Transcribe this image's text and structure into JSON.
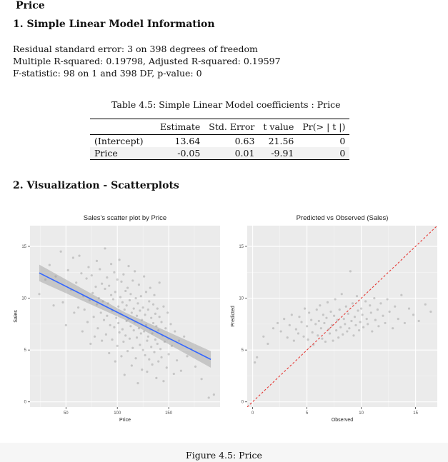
{
  "header": {
    "title": "Price"
  },
  "section1": {
    "heading": "1. Simple Linear Model Information",
    "summary": [
      "Residual standard error: 3 on 398 degrees of freedom",
      "Multiple R-squared: 0.19798, Adjusted R-squared: 0.19597",
      "F-statistic: 98 on 1 and 398 DF, p-value: 0"
    ]
  },
  "table": {
    "caption": "Table 4.5: Simple Linear Model coefficients : Price",
    "columns": [
      "",
      "Estimate",
      "Std. Error",
      "t value",
      "Pr(> | t |)"
    ],
    "rows": [
      [
        "(Intercept)",
        "13.64",
        "0.63",
        "21.56",
        "0"
      ],
      [
        "Price",
        "-0.05",
        "0.01",
        "-9.91",
        "0"
      ]
    ]
  },
  "section2": {
    "heading": "2. Visualization - Scatterplots"
  },
  "figure": {
    "caption": "Figure 4.5: Price"
  },
  "chart_data": [
    {
      "type": "scatter",
      "title": "Sales's scatter plot by Price",
      "xlabel": "Price",
      "ylabel": "Sales",
      "xlim": [
        15,
        200
      ],
      "ylim": [
        -0.5,
        17
      ],
      "xticks": [
        50,
        100,
        150
      ],
      "yticks": [
        0,
        5,
        10,
        15
      ],
      "grid": true,
      "points_color": "#7f7f7f",
      "line_color": "#3366ff",
      "band_color": "#999999",
      "fit": {
        "intercept": 13.64,
        "slope": -0.05,
        "x_range": [
          24,
          191
        ],
        "se_band": 0.8
      },
      "points": [
        [
          24,
          10.4
        ],
        [
          30,
          11.8
        ],
        [
          34,
          13.2
        ],
        [
          38,
          9.3
        ],
        [
          40,
          12.1
        ],
        [
          45,
          14.5
        ],
        [
          47,
          9.6
        ],
        [
          50,
          7.4
        ],
        [
          52,
          12.7
        ],
        [
          55,
          10.8
        ],
        [
          57,
          13.9
        ],
        [
          58,
          8.6
        ],
        [
          60,
          11.5
        ],
        [
          62,
          9.1
        ],
        [
          63,
          14.1
        ],
        [
          65,
          12.4
        ],
        [
          66,
          6.8
        ],
        [
          67,
          10.2
        ],
        [
          68,
          8.9
        ],
        [
          70,
          11.9
        ],
        [
          71,
          7.7
        ],
        [
          72,
          13.0
        ],
        [
          73,
          9.8
        ],
        [
          74,
          5.6
        ],
        [
          75,
          12.2
        ],
        [
          76,
          10.5
        ],
        [
          77,
          8.2
        ],
        [
          78,
          6.3
        ],
        [
          79,
          11.1
        ],
        [
          80,
          9.4
        ],
        [
          80,
          13.6
        ],
        [
          81,
          7.1
        ],
        [
          82,
          10.0
        ],
        [
          83,
          12.8
        ],
        [
          84,
          8.6
        ],
        [
          85,
          5.9
        ],
        [
          85,
          11.4
        ],
        [
          86,
          9.7
        ],
        [
          87,
          7.9
        ],
        [
          88,
          10.9
        ],
        [
          88,
          14.8
        ],
        [
          89,
          6.5
        ],
        [
          90,
          12.0
        ],
        [
          90,
          8.3
        ],
        [
          91,
          9.5
        ],
        [
          92,
          4.7
        ],
        [
          92,
          11.2
        ],
        [
          93,
          7.4
        ],
        [
          94,
          10.3
        ],
        [
          94,
          13.3
        ],
        [
          95,
          8.8
        ],
        [
          95,
          6.0
        ],
        [
          96,
          9.9
        ],
        [
          97,
          12.5
        ],
        [
          97,
          7.2
        ],
        [
          98,
          3.9
        ],
        [
          98,
          10.6
        ],
        [
          99,
          8.1
        ],
        [
          100,
          11.8
        ],
        [
          100,
          5.4
        ],
        [
          101,
          9.2
        ],
        [
          101,
          7.6
        ],
        [
          102,
          13.7
        ],
        [
          102,
          6.7
        ],
        [
          103,
          10.1
        ],
        [
          103,
          8.5
        ],
        [
          104,
          4.4
        ],
        [
          104,
          11.6
        ],
        [
          105,
          7.0
        ],
        [
          105,
          9.6
        ],
        [
          106,
          12.3
        ],
        [
          106,
          5.8
        ],
        [
          107,
          8.9
        ],
        [
          107,
          2.6
        ],
        [
          108,
          10.7
        ],
        [
          108,
          6.4
        ],
        [
          109,
          7.8
        ],
        [
          109,
          9.3
        ],
        [
          110,
          11.0
        ],
        [
          110,
          4.9
        ],
        [
          111,
          8.0
        ],
        [
          111,
          13.1
        ],
        [
          112,
          6.1
        ],
        [
          112,
          9.8
        ],
        [
          113,
          7.3
        ],
        [
          113,
          10.4
        ],
        [
          114,
          3.5
        ],
        [
          114,
          8.6
        ],
        [
          115,
          11.7
        ],
        [
          115,
          5.2
        ],
        [
          116,
          9.0
        ],
        [
          116,
          6.9
        ],
        [
          117,
          7.7
        ],
        [
          117,
          12.6
        ],
        [
          118,
          4.2
        ],
        [
          118,
          10.0
        ],
        [
          119,
          8.3
        ],
        [
          119,
          6.2
        ],
        [
          120,
          9.5
        ],
        [
          120,
          1.8
        ],
        [
          121,
          7.1
        ],
        [
          121,
          11.3
        ],
        [
          122,
          5.5
        ],
        [
          122,
          8.8
        ],
        [
          123,
          6.6
        ],
        [
          123,
          10.2
        ],
        [
          124,
          3.1
        ],
        [
          124,
          7.9
        ],
        [
          125,
          9.1
        ],
        [
          125,
          5.0
        ],
        [
          126,
          12.1
        ],
        [
          126,
          6.8
        ],
        [
          127,
          8.4
        ],
        [
          127,
          4.5
        ],
        [
          128,
          7.4
        ],
        [
          128,
          10.6
        ],
        [
          129,
          5.9
        ],
        [
          129,
          2.9
        ],
        [
          130,
          8.9
        ],
        [
          130,
          6.3
        ],
        [
          131,
          9.7
        ],
        [
          131,
          4.1
        ],
        [
          132,
          7.0
        ],
        [
          132,
          11.0
        ],
        [
          133,
          5.3
        ],
        [
          133,
          8.1
        ],
        [
          134,
          3.6
        ],
        [
          134,
          6.6
        ],
        [
          135,
          9.4
        ],
        [
          135,
          7.6
        ],
        [
          136,
          4.8
        ],
        [
          136,
          10.3
        ],
        [
          137,
          6.0
        ],
        [
          137,
          8.5
        ],
        [
          138,
          2.3
        ],
        [
          138,
          7.3
        ],
        [
          139,
          5.6
        ],
        [
          139,
          9.0
        ],
        [
          140,
          6.9
        ],
        [
          140,
          3.9
        ],
        [
          141,
          8.2
        ],
        [
          141,
          11.5
        ],
        [
          142,
          5.1
        ],
        [
          143,
          7.7
        ],
        [
          143,
          4.3
        ],
        [
          144,
          6.4
        ],
        [
          145,
          9.2
        ],
        [
          145,
          2.0
        ],
        [
          146,
          5.8
        ],
        [
          147,
          7.1
        ],
        [
          148,
          3.3
        ],
        [
          149,
          8.6
        ],
        [
          150,
          6.1
        ],
        [
          150,
          4.6
        ],
        [
          152,
          7.5
        ],
        [
          153,
          5.4
        ],
        [
          155,
          2.7
        ],
        [
          156,
          6.8
        ],
        [
          158,
          4.0
        ],
        [
          160,
          5.9
        ],
        [
          162,
          3.0
        ],
        [
          165,
          6.3
        ],
        [
          168,
          4.4
        ],
        [
          172,
          5.1
        ],
        [
          176,
          3.4
        ],
        [
          182,
          2.2
        ],
        [
          189,
          0.4
        ],
        [
          194,
          0.7
        ]
      ]
    },
    {
      "type": "scatter",
      "title": "Predicted vs Observed (Sales)",
      "xlabel": "Observed",
      "ylabel": "Predicted",
      "xlim": [
        -0.5,
        17
      ],
      "ylim": [
        -0.5,
        17
      ],
      "xticks": [
        0,
        5,
        10,
        15
      ],
      "yticks": [
        0,
        5,
        10,
        15
      ],
      "grid": true,
      "points_color": "#7f7f7f",
      "ref_line": {
        "label": "",
        "color": "#e53935",
        "slope": 1,
        "intercept": 0
      },
      "points": [
        [
          0.2,
          3.8
        ],
        [
          0.4,
          4.3
        ],
        [
          1.0,
          6.3
        ],
        [
          1.4,
          5.6
        ],
        [
          1.9,
          7.1
        ],
        [
          2.3,
          7.6
        ],
        [
          2.6,
          6.8
        ],
        [
          2.9,
          8.0
        ],
        [
          3.2,
          6.2
        ],
        [
          3.4,
          7.4
        ],
        [
          3.6,
          8.4
        ],
        [
          3.8,
          5.9
        ],
        [
          4.0,
          7.0
        ],
        [
          4.2,
          6.6
        ],
        [
          4.3,
          8.2
        ],
        [
          4.5,
          7.7
        ],
        [
          4.7,
          6.3
        ],
        [
          4.8,
          9.0
        ],
        [
          5.0,
          7.3
        ],
        [
          5.1,
          6.0
        ],
        [
          5.2,
          8.6
        ],
        [
          5.4,
          7.9
        ],
        [
          5.5,
          6.7
        ],
        [
          5.6,
          5.5
        ],
        [
          5.8,
          7.5
        ],
        [
          5.9,
          8.9
        ],
        [
          6.0,
          6.4
        ],
        [
          6.1,
          7.8
        ],
        [
          6.2,
          9.3
        ],
        [
          6.3,
          7.1
        ],
        [
          6.4,
          6.1
        ],
        [
          6.5,
          8.4
        ],
        [
          6.6,
          7.6
        ],
        [
          6.7,
          5.8
        ],
        [
          6.8,
          8.1
        ],
        [
          6.9,
          9.6
        ],
        [
          7.0,
          7.0
        ],
        [
          7.1,
          6.6
        ],
        [
          7.2,
          8.7
        ],
        [
          7.3,
          7.4
        ],
        [
          7.4,
          5.9
        ],
        [
          7.5,
          8.3
        ],
        [
          7.6,
          9.9
        ],
        [
          7.7,
          6.9
        ],
        [
          7.8,
          7.9
        ],
        [
          7.9,
          6.2
        ],
        [
          8.0,
          8.9
        ],
        [
          8.1,
          7.2
        ],
        [
          8.2,
          10.4
        ],
        [
          8.3,
          6.5
        ],
        [
          8.4,
          8.0
        ],
        [
          8.5,
          7.5
        ],
        [
          8.6,
          9.2
        ],
        [
          8.7,
          6.8
        ],
        [
          8.8,
          8.5
        ],
        [
          8.9,
          7.1
        ],
        [
          9.0,
          12.6
        ],
        [
          9.1,
          7.8
        ],
        [
          9.2,
          9.5
        ],
        [
          9.3,
          6.4
        ],
        [
          9.4,
          8.2
        ],
        [
          9.5,
          7.4
        ],
        [
          9.6,
          10.2
        ],
        [
          9.7,
          8.8
        ],
        [
          9.8,
          6.9
        ],
        [
          9.9,
          7.7
        ],
        [
          10.0,
          9.0
        ],
        [
          10.1,
          8.4
        ],
        [
          10.2,
          7.2
        ],
        [
          10.4,
          9.7
        ],
        [
          10.5,
          8.0
        ],
        [
          10.6,
          7.5
        ],
        [
          10.8,
          9.3
        ],
        [
          10.9,
          8.6
        ],
        [
          11.0,
          6.8
        ],
        [
          11.2,
          10.0
        ],
        [
          11.3,
          7.9
        ],
        [
          11.5,
          8.9
        ],
        [
          11.6,
          7.3
        ],
        [
          11.8,
          9.5
        ],
        [
          12.0,
          8.3
        ],
        [
          12.2,
          7.6
        ],
        [
          12.4,
          9.9
        ],
        [
          12.6,
          8.7
        ],
        [
          12.9,
          7.1
        ],
        [
          13.1,
          9.2
        ],
        [
          13.4,
          8.0
        ],
        [
          13.7,
          10.3
        ],
        [
          14.0,
          7.6
        ],
        [
          14.4,
          9.0
        ],
        [
          14.8,
          8.4
        ],
        [
          15.3,
          7.8
        ],
        [
          15.9,
          9.4
        ],
        [
          16.4,
          8.7
        ]
      ]
    }
  ]
}
